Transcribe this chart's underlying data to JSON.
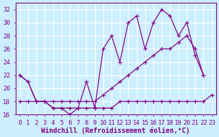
{
  "xlabel": "Windchill (Refroidissement éolien,°C)",
  "x": [
    0,
    1,
    2,
    3,
    4,
    5,
    6,
    7,
    8,
    9,
    10,
    11,
    12,
    13,
    14,
    15,
    16,
    17,
    18,
    19,
    20,
    21,
    22,
    23
  ],
  "curveA": [
    22,
    21,
    18,
    18,
    17,
    17,
    17,
    17,
    21,
    17,
    26,
    28,
    24,
    30,
    31,
    26,
    30,
    32,
    31,
    28,
    30,
    25,
    22,
    null
  ],
  "curveB": [
    22,
    21,
    18,
    18,
    18,
    18,
    18,
    18,
    18,
    18,
    19,
    20,
    21,
    22,
    23,
    24,
    25,
    26,
    26,
    27,
    28,
    26,
    22,
    null
  ],
  "curveC": [
    18,
    18,
    18,
    18,
    17,
    17,
    16,
    17,
    17,
    17,
    17,
    17,
    18,
    18,
    18,
    18,
    18,
    18,
    18,
    18,
    18,
    18,
    18,
    19
  ],
  "ylim": [
    16,
    33
  ],
  "xlim": [
    -0.5,
    23.5
  ],
  "yticks": [
    16,
    18,
    20,
    22,
    24,
    26,
    28,
    30,
    32
  ],
  "color": "#800080",
  "bg_color": "#cceeff",
  "grid_color": "#ffffff",
  "label_fontsize": 7,
  "tick_fontsize": 6.5
}
